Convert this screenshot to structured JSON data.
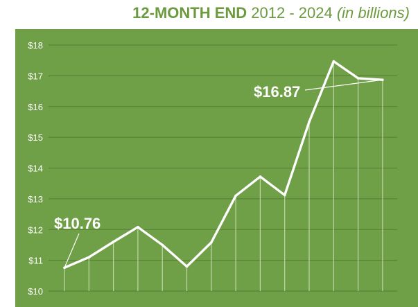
{
  "title": {
    "bold_part": "12-MONTH END",
    "range_part": "2012 - 2024",
    "unit_part": "(in billions)"
  },
  "colors": {
    "background": "#6f9f46",
    "line": "#ffffff",
    "title": "#6b9a3f"
  },
  "chart_data": {
    "type": "line",
    "title": "12-MONTH END 2012 - 2024 (in billions)",
    "ylabel": "",
    "xlabel": "",
    "ylim": [
      10,
      18
    ],
    "yticks": [
      "$10",
      "$11",
      "$12",
      "$13",
      "$14",
      "$15",
      "$16",
      "$17",
      "$18"
    ],
    "grid": true,
    "x": [
      1,
      2,
      3,
      4,
      5,
      6,
      7,
      8,
      9,
      10,
      11,
      12,
      13,
      14
    ],
    "values": [
      10.76,
      11.1,
      11.6,
      12.08,
      11.5,
      10.8,
      11.58,
      13.1,
      13.72,
      13.12,
      15.5,
      17.47,
      16.92,
      16.87
    ],
    "annotations": [
      {
        "text": "$10.76",
        "point_index": 0
      },
      {
        "text": "$16.87",
        "point_index": 13
      }
    ]
  }
}
